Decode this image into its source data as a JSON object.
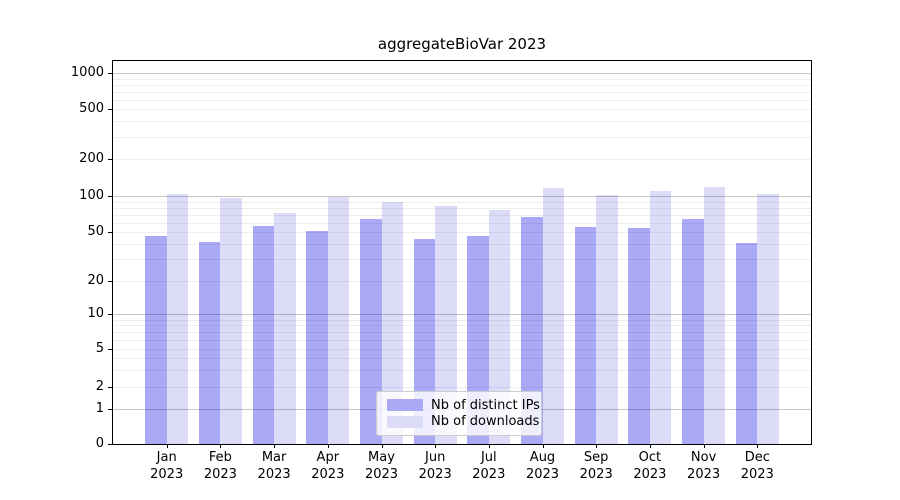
{
  "chart_data": {
    "type": "bar",
    "title": "aggregateBioVar 2023",
    "categories": [
      "Jan",
      "Feb",
      "Mar",
      "Apr",
      "May",
      "Jun",
      "Jul",
      "Aug",
      "Sep",
      "Oct",
      "Nov",
      "Dec"
    ],
    "x_year": "2023",
    "series": [
      {
        "name": "Nb of distinct IPs",
        "color": "#a9a9f6",
        "values": [
          47,
          42,
          56,
          51,
          64,
          44,
          47,
          67,
          55,
          54,
          65,
          41
        ]
      },
      {
        "name": "Nb of downloads",
        "color": "#dcdcf8",
        "values": [
          103,
          97,
          72,
          98,
          90,
          82,
          77,
          117,
          102,
          110,
          118,
          104
        ]
      }
    ],
    "yscale": "symlog",
    "ytick_values": [
      0,
      1,
      2,
      5,
      10,
      20,
      50,
      100,
      200,
      500,
      1000
    ],
    "ytick_labels": [
      "0",
      "1",
      "2",
      "5",
      "10",
      "20",
      "50",
      "100",
      "200",
      "500",
      "1000"
    ],
    "ylim": [
      0,
      1260
    ],
    "grid": true,
    "legend_position": "lower center",
    "colors": {
      "major_grid": "#c6c6c6",
      "minor_grid": "#ededed",
      "spine": "#000000"
    }
  }
}
